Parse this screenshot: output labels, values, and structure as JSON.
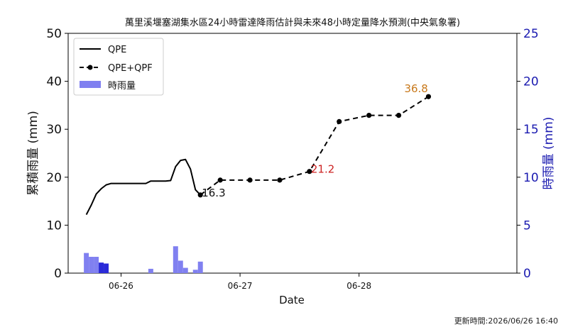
{
  "chart_data": {
    "type": "line",
    "title": "萬里溪堰塞湖集水區24小時雷達降雨估計與未來48小時定量降水預測(中央氣象署)",
    "xlabel": "Date",
    "ylabel": "累積雨量 (mm)",
    "ylabel_right": "時雨量 (mm)",
    "ylim": [
      0,
      50
    ],
    "ylim_right": [
      0,
      25
    ],
    "yticks": [
      0,
      10,
      20,
      30,
      40,
      50
    ],
    "yticks_right": [
      0,
      5,
      10,
      15,
      20,
      25
    ],
    "xlim": [
      "2026-06-25 13:20",
      "2026-06-29 07:50"
    ],
    "xticks": [
      {
        "t": "2026-06-26 00:00",
        "label": "06-26"
      },
      {
        "t": "2026-06-27 00:00",
        "label": "06-27"
      },
      {
        "t": "2026-06-28 00:00",
        "label": "06-28"
      }
    ],
    "legend_position": "top-left",
    "series": [
      {
        "name": "QPE",
        "style": "solid",
        "color": "#000000",
        "points": [
          [
            "2026-06-25 17:00",
            12.2
          ],
          [
            "2026-06-25 18:00",
            14.2
          ],
          [
            "2026-06-25 19:00",
            16.5
          ],
          [
            "2026-06-25 20:00",
            17.6
          ],
          [
            "2026-06-25 21:00",
            18.4
          ],
          [
            "2026-06-25 22:00",
            18.7
          ],
          [
            "2026-06-25 23:00",
            18.7
          ],
          [
            "2026-06-26 00:00",
            18.7
          ],
          [
            "2026-06-26 01:00",
            18.7
          ],
          [
            "2026-06-26 02:00",
            18.7
          ],
          [
            "2026-06-26 03:00",
            18.7
          ],
          [
            "2026-06-26 04:00",
            18.7
          ],
          [
            "2026-06-26 05:00",
            18.7
          ],
          [
            "2026-06-26 06:00",
            19.2
          ],
          [
            "2026-06-26 07:00",
            19.2
          ],
          [
            "2026-06-26 08:00",
            19.2
          ],
          [
            "2026-06-26 09:00",
            19.2
          ],
          [
            "2026-06-26 10:00",
            19.3
          ],
          [
            "2026-06-26 11:00",
            22.2
          ],
          [
            "2026-06-26 12:00",
            23.5
          ],
          [
            "2026-06-26 13:00",
            23.7
          ],
          [
            "2026-06-26 14:00",
            21.7
          ],
          [
            "2026-06-26 15:00",
            17.4
          ],
          [
            "2026-06-26 16:00",
            16.3
          ]
        ]
      },
      {
        "name": "QPE+QPF",
        "style": "dashed",
        "marker": "circle",
        "color": "#000000",
        "points": [
          [
            "2026-06-26 16:00",
            16.3
          ],
          [
            "2026-06-26 20:00",
            19.4
          ],
          [
            "2026-06-27 02:00",
            19.4
          ],
          [
            "2026-06-27 08:00",
            19.4
          ],
          [
            "2026-06-27 14:00",
            21.2
          ],
          [
            "2026-06-27 20:00",
            31.6
          ],
          [
            "2026-06-28 02:00",
            32.9
          ],
          [
            "2026-06-28 08:00",
            32.9
          ],
          [
            "2026-06-28 14:00",
            36.8
          ]
        ]
      }
    ],
    "bars": {
      "name": "時雨量",
      "axis": "right",
      "color": "#8080f0",
      "highlight_color": "#2a2ad8",
      "width_hours": 1,
      "values": [
        [
          "2026-06-25 17:00",
          2.1,
          false
        ],
        [
          "2026-06-25 18:00",
          1.7,
          false
        ],
        [
          "2026-06-25 19:00",
          1.7,
          false
        ],
        [
          "2026-06-25 20:00",
          1.1,
          true
        ],
        [
          "2026-06-25 21:00",
          1.0,
          true
        ],
        [
          "2026-06-26 06:00",
          0.45,
          false
        ],
        [
          "2026-06-26 11:00",
          2.8,
          false
        ],
        [
          "2026-06-26 12:00",
          1.3,
          false
        ],
        [
          "2026-06-26 13:00",
          0.55,
          false
        ],
        [
          "2026-06-26 15:00",
          0.35,
          false
        ],
        [
          "2026-06-26 16:00",
          1.2,
          false
        ]
      ]
    },
    "annotations": [
      {
        "text": "16.3",
        "t": "2026-06-26 16:00",
        "y": 16.3,
        "color": "#111111"
      },
      {
        "text": "21.2",
        "t": "2026-06-27 14:00",
        "y": 21.2,
        "color": "#cc2222"
      },
      {
        "text": "36.8",
        "t": "2026-06-28 14:00",
        "y": 36.8,
        "color": "#c8781a"
      }
    ]
  },
  "footer": "更新時間:2026/06/26 16:40"
}
